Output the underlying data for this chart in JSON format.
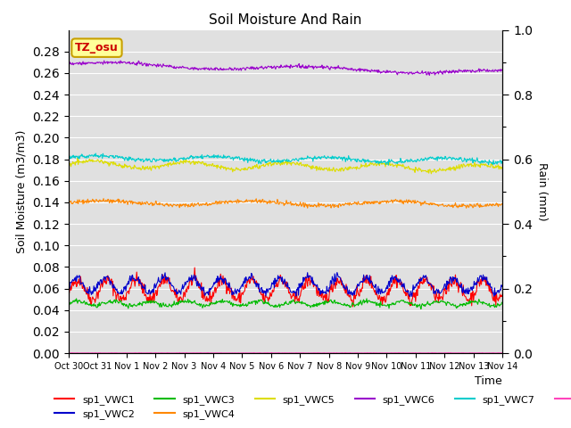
{
  "title": "Soil Moisture And Rain",
  "xlabel": "Time",
  "ylabel_left": "Soil Moisture (m3/m3)",
  "ylabel_right": "Rain (mm)",
  "ylim_left": [
    0.0,
    0.3
  ],
  "ylim_right": [
    0.0,
    1.0
  ],
  "yticks_left": [
    0.0,
    0.02,
    0.04,
    0.06,
    0.08,
    0.1,
    0.12,
    0.14,
    0.16,
    0.18,
    0.2,
    0.22,
    0.24,
    0.26,
    0.28
  ],
  "yticks_right_major": [
    0.0,
    0.2,
    0.4,
    0.6,
    0.8,
    1.0
  ],
  "yticks_right_minor": [
    0.1,
    0.3,
    0.5,
    0.7,
    0.9
  ],
  "background_color": "#e0e0e0",
  "annotation_text": "TZ_osu",
  "annotation_bg": "#ffff99",
  "annotation_border": "#c8a000",
  "annotation_text_color": "#cc0000",
  "series": {
    "sp1_VWC1": {
      "color": "#ff0000",
      "lw": 0.8
    },
    "sp1_VWC2": {
      "color": "#0000cc",
      "lw": 0.8
    },
    "sp1_VWC3": {
      "color": "#00bb00",
      "lw": 0.8
    },
    "sp1_VWC4": {
      "color": "#ff8800",
      "lw": 0.8
    },
    "sp1_VWC5": {
      "color": "#dddd00",
      "lw": 0.8
    },
    "sp1_VWC6": {
      "color": "#9900cc",
      "lw": 0.8
    },
    "sp1_VWC7": {
      "color": "#00cccc",
      "lw": 0.8
    },
    "sp1_Rain": {
      "color": "#ff44bb",
      "lw": 0.8
    }
  },
  "xtick_labels": [
    "Oct 30",
    "Oct 31",
    "Nov 1",
    "Nov 2",
    "Nov 3",
    "Nov 4",
    "Nov 5",
    "Nov 6",
    "Nov 7",
    "Nov 8",
    "Nov 9",
    "Nov 10",
    "Nov 11",
    "Nov 12",
    "Nov 13",
    "Nov 14"
  ],
  "n_points": 720
}
